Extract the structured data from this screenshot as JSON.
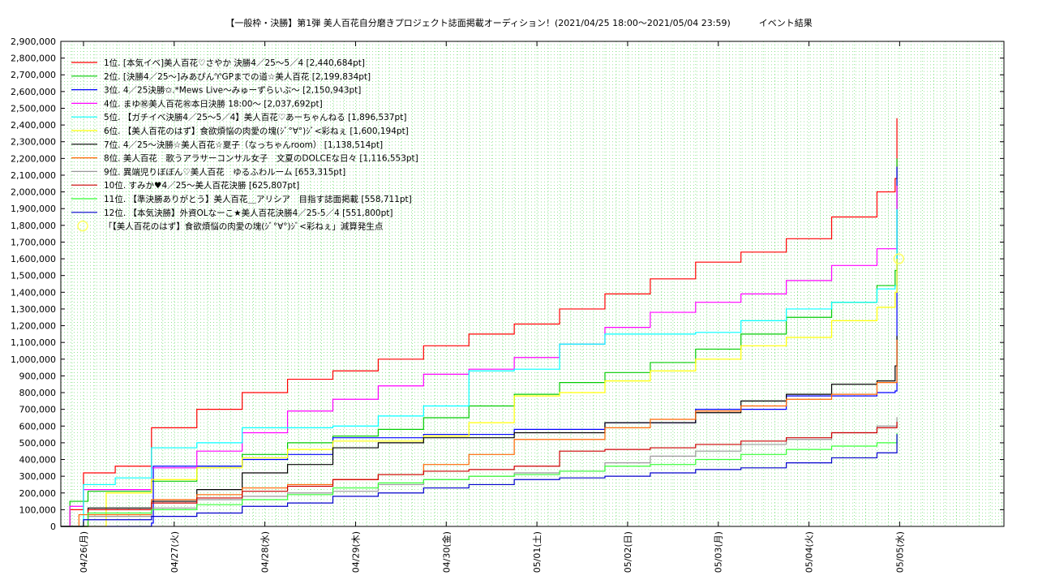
{
  "chart_data": {
    "type": "line",
    "title": "【一般枠・決勝】第1弾 美人百花自分磨きプロジェクト誌面掲載オーディション！(2021/04/25 18:00〜2021/05/04 23:59)          イベント結果",
    "xlabel": "",
    "ylabel": "",
    "xlim": [
      0,
      10.4
    ],
    "ylim": [
      0,
      2900000
    ],
    "x_ticks": [
      {
        "label": "04/26(月)",
        "x": 0.25
      },
      {
        "label": "04/27(火)",
        "x": 1.25
      },
      {
        "label": "04/28(水)",
        "x": 2.25
      },
      {
        "label": "04/29(木)",
        "x": 3.25
      },
      {
        "label": "04/30(金)",
        "x": 4.25
      },
      {
        "label": "05/01(土)",
        "x": 5.25
      },
      {
        "label": "05/02(日)",
        "x": 6.25
      },
      {
        "label": "05/03(月)",
        "x": 7.25
      },
      {
        "label": "05/04(火)",
        "x": 8.25
      },
      {
        "label": "05/05(水)",
        "x": 9.25
      }
    ],
    "y_ticks": [
      0,
      100000,
      200000,
      300000,
      400000,
      500000,
      600000,
      700000,
      800000,
      900000,
      1000000,
      1100000,
      1200000,
      1300000,
      1400000,
      1500000,
      1600000,
      1700000,
      1800000,
      1900000,
      2000000,
      2100000,
      2200000,
      2300000,
      2400000,
      2500000,
      2600000,
      2700000,
      2800000,
      2900000
    ],
    "grid": true,
    "legend_position": "top-left",
    "series": [
      {
        "name": "1位. [本気イベ]美人百花♡さやか 決勝4／25〜5／4 [2,440,684pt]",
        "color": "#ff0000",
        "points": [
          [
            0,
            0
          ],
          [
            0.1,
            100000
          ],
          [
            0.25,
            320000
          ],
          [
            0.6,
            360000
          ],
          [
            1,
            590000
          ],
          [
            1.5,
            700000
          ],
          [
            2,
            800000
          ],
          [
            2.5,
            880000
          ],
          [
            3,
            930000
          ],
          [
            3.5,
            1000000
          ],
          [
            4,
            1080000
          ],
          [
            4.5,
            1150000
          ],
          [
            5,
            1210000
          ],
          [
            5.5,
            1300000
          ],
          [
            6,
            1390000
          ],
          [
            6.5,
            1480000
          ],
          [
            7,
            1580000
          ],
          [
            7.5,
            1640000
          ],
          [
            8,
            1720000
          ],
          [
            8.5,
            1850000
          ],
          [
            9,
            2000000
          ],
          [
            9.2,
            2080000
          ],
          [
            9.22,
            2440684
          ]
        ]
      },
      {
        "name": "2位. [決勝4／25〜]みあぴん♈GPまでの道☆美人百花 [2,199,834pt]",
        "color": "#00cc00",
        "points": [
          [
            0,
            0
          ],
          [
            0.1,
            150000
          ],
          [
            0.3,
            210000
          ],
          [
            1,
            270000
          ],
          [
            1.5,
            360000
          ],
          [
            2,
            430000
          ],
          [
            2.5,
            500000
          ],
          [
            3,
            540000
          ],
          [
            3.5,
            580000
          ],
          [
            4,
            650000
          ],
          [
            4.5,
            720000
          ],
          [
            5,
            790000
          ],
          [
            5.5,
            860000
          ],
          [
            6,
            920000
          ],
          [
            6.5,
            980000
          ],
          [
            7,
            1060000
          ],
          [
            7.5,
            1150000
          ],
          [
            8,
            1250000
          ],
          [
            8.5,
            1340000
          ],
          [
            9,
            1440000
          ],
          [
            9.2,
            1530000
          ],
          [
            9.22,
            2199834
          ]
        ]
      },
      {
        "name": "3位. 4／25決勝✩.*Mews Live〜みゅーずらいぶ〜 [2,150,943pt]",
        "color": "#0000ff",
        "points": [
          [
            0,
            0
          ],
          [
            1,
            20000
          ],
          [
            1.02,
            360000
          ],
          [
            2,
            400000
          ],
          [
            2.5,
            430000
          ],
          [
            3,
            530000
          ],
          [
            4,
            550000
          ],
          [
            5,
            580000
          ],
          [
            6,
            620000
          ],
          [
            7,
            700000
          ],
          [
            8,
            780000
          ],
          [
            9,
            800000
          ],
          [
            9.2,
            810000
          ],
          [
            9.22,
            2150943
          ]
        ]
      },
      {
        "name": "4位. まゆ㊗美人百花㊗本日決勝 18:00〜 [2,037,692pt]",
        "color": "#ff00ff",
        "points": [
          [
            0,
            0
          ],
          [
            0.1,
            120000
          ],
          [
            0.25,
            220000
          ],
          [
            1,
            350000
          ],
          [
            1.5,
            450000
          ],
          [
            2,
            560000
          ],
          [
            2.5,
            690000
          ],
          [
            3,
            760000
          ],
          [
            3.5,
            840000
          ],
          [
            4,
            910000
          ],
          [
            4.5,
            940000
          ],
          [
            5,
            1010000
          ],
          [
            5.5,
            1090000
          ],
          [
            6,
            1190000
          ],
          [
            6.5,
            1280000
          ],
          [
            7,
            1340000
          ],
          [
            7.5,
            1390000
          ],
          [
            8,
            1470000
          ],
          [
            8.5,
            1560000
          ],
          [
            9,
            1660000
          ],
          [
            9.22,
            2037692
          ]
        ]
      },
      {
        "name": "5位. 【ガチイベ決勝4／25〜5／4】美人百花♡あーちゃんねる [1,896,537pt]",
        "color": "#00ffff",
        "points": [
          [
            0,
            0
          ],
          [
            0.25,
            250000
          ],
          [
            0.6,
            290000
          ],
          [
            1,
            470000
          ],
          [
            1.5,
            500000
          ],
          [
            2,
            590000
          ],
          [
            3,
            600000
          ],
          [
            3.5,
            660000
          ],
          [
            4,
            720000
          ],
          [
            4.5,
            930000
          ],
          [
            5,
            940000
          ],
          [
            5.5,
            1090000
          ],
          [
            6,
            1150000
          ],
          [
            7,
            1160000
          ],
          [
            7.5,
            1230000
          ],
          [
            8,
            1300000
          ],
          [
            8.5,
            1340000
          ],
          [
            9,
            1420000
          ],
          [
            9.2,
            1440000
          ],
          [
            9.22,
            1896537
          ]
        ]
      },
      {
        "name": "6位. 【美人百花のはず】食欲煩悩の肉愛の塊(ｼﾞ°∀°)ｼﾞ<彩ねぇ [1,600,194pt]",
        "color": "#ffff00",
        "points": [
          [
            0,
            0
          ],
          [
            0.5,
            200000
          ],
          [
            1,
            280000
          ],
          [
            1.5,
            350000
          ],
          [
            2,
            410000
          ],
          [
            2.5,
            460000
          ],
          [
            3,
            510000
          ],
          [
            4,
            540000
          ],
          [
            4.5,
            620000
          ],
          [
            5,
            780000
          ],
          [
            5.5,
            800000
          ],
          [
            6,
            870000
          ],
          [
            6.5,
            930000
          ],
          [
            7,
            1000000
          ],
          [
            7.5,
            1080000
          ],
          [
            8,
            1130000
          ],
          [
            8.5,
            1230000
          ],
          [
            9,
            1310000
          ],
          [
            9.2,
            1400000
          ],
          [
            9.22,
            1600194
          ]
        ]
      },
      {
        "name": "7位. 4／25〜決勝☆美人百花☆夏子（なっちゃんroom） [1,138,514pt]",
        "color": "#000000",
        "points": [
          [
            0,
            0
          ],
          [
            0.3,
            110000
          ],
          [
            1,
            150000
          ],
          [
            1.5,
            220000
          ],
          [
            2,
            320000
          ],
          [
            2.5,
            370000
          ],
          [
            3,
            470000
          ],
          [
            3.5,
            500000
          ],
          [
            4,
            530000
          ],
          [
            5,
            560000
          ],
          [
            6,
            620000
          ],
          [
            7,
            680000
          ],
          [
            7.5,
            750000
          ],
          [
            8,
            790000
          ],
          [
            8.5,
            850000
          ],
          [
            9,
            870000
          ],
          [
            9.2,
            960000
          ],
          [
            9.22,
            1138514
          ]
        ]
      },
      {
        "name": "8位. 美人百花　歌うアラサーコンサル女子　文夏のDOLCEな日々 [1,116,553pt]",
        "color": "#ff6600",
        "points": [
          [
            0,
            0
          ],
          [
            0.2,
            70000
          ],
          [
            1,
            160000
          ],
          [
            1.5,
            190000
          ],
          [
            2,
            230000
          ],
          [
            2.5,
            250000
          ],
          [
            3,
            280000
          ],
          [
            3.5,
            310000
          ],
          [
            4,
            370000
          ],
          [
            4.5,
            430000
          ],
          [
            5,
            520000
          ],
          [
            6,
            590000
          ],
          [
            6.5,
            640000
          ],
          [
            7,
            690000
          ],
          [
            7.5,
            720000
          ],
          [
            8,
            760000
          ],
          [
            8.5,
            790000
          ],
          [
            9,
            860000
          ],
          [
            9.22,
            1116553
          ]
        ]
      },
      {
        "name": "9位. 異端児りぼぼん♡美人百花　ゆるふわルーム [653,315pt]",
        "color": "#999999",
        "points": [
          [
            0,
            0
          ],
          [
            0.3,
            60000
          ],
          [
            1,
            110000
          ],
          [
            1.5,
            160000
          ],
          [
            2,
            180000
          ],
          [
            2.5,
            200000
          ],
          [
            3,
            210000
          ],
          [
            3.5,
            250000
          ],
          [
            4,
            280000
          ],
          [
            4.5,
            300000
          ],
          [
            5,
            320000
          ],
          [
            5.5,
            330000
          ],
          [
            6,
            380000
          ],
          [
            6.5,
            420000
          ],
          [
            7,
            450000
          ],
          [
            7.5,
            490000
          ],
          [
            8,
            520000
          ],
          [
            8.5,
            560000
          ],
          [
            9,
            600000
          ],
          [
            9.22,
            653315
          ]
        ]
      },
      {
        "name": "10位. すみか♥4／25〜美人百花決勝 [625,807pt]",
        "color": "#cc0000",
        "points": [
          [
            0,
            0
          ],
          [
            0.3,
            100000
          ],
          [
            1,
            140000
          ],
          [
            1.5,
            170000
          ],
          [
            2,
            210000
          ],
          [
            2.5,
            240000
          ],
          [
            3,
            280000
          ],
          [
            3.5,
            310000
          ],
          [
            4,
            330000
          ],
          [
            4.5,
            340000
          ],
          [
            5,
            360000
          ],
          [
            5.5,
            450000
          ],
          [
            6,
            460000
          ],
          [
            6.5,
            470000
          ],
          [
            7,
            490000
          ],
          [
            7.5,
            510000
          ],
          [
            8,
            530000
          ],
          [
            8.5,
            560000
          ],
          [
            9,
            590000
          ],
          [
            9.22,
            625807
          ]
        ]
      },
      {
        "name": "11位. 【準決勝ありがとう】美人百花＿アリシア　目指す誌面掲載 [558,711pt]",
        "color": "#33ff33",
        "points": [
          [
            0,
            0
          ],
          [
            0.3,
            80000
          ],
          [
            1,
            100000
          ],
          [
            1.5,
            130000
          ],
          [
            2,
            160000
          ],
          [
            2.5,
            190000
          ],
          [
            3,
            230000
          ],
          [
            3.5,
            260000
          ],
          [
            4,
            280000
          ],
          [
            4.5,
            300000
          ],
          [
            5,
            310000
          ],
          [
            5.5,
            330000
          ],
          [
            6,
            360000
          ],
          [
            6.5,
            370000
          ],
          [
            7,
            400000
          ],
          [
            7.5,
            430000
          ],
          [
            8,
            460000
          ],
          [
            8.5,
            480000
          ],
          [
            9,
            500000
          ],
          [
            9.22,
            558711
          ]
        ]
      },
      {
        "name": "12位. 【本気決勝】外資OLなーこ★美人百花決勝4／25-5／4 [551,800pt]",
        "color": "#0000cc",
        "points": [
          [
            0,
            0
          ],
          [
            0.25,
            40000
          ],
          [
            1,
            60000
          ],
          [
            1.5,
            80000
          ],
          [
            2,
            120000
          ],
          [
            2.5,
            140000
          ],
          [
            3,
            180000
          ],
          [
            3.5,
            200000
          ],
          [
            4,
            230000
          ],
          [
            4.5,
            250000
          ],
          [
            5,
            280000
          ],
          [
            5.5,
            290000
          ],
          [
            6,
            300000
          ],
          [
            6.5,
            320000
          ],
          [
            7,
            340000
          ],
          [
            7.5,
            350000
          ],
          [
            8,
            380000
          ],
          [
            8.5,
            410000
          ],
          [
            9,
            440000
          ],
          [
            9.22,
            551800
          ]
        ]
      }
    ],
    "annotation": {
      "label": "「【美人百花のはず】食欲煩悩の肉愛の塊(ｼﾞ°∀°)ｼﾞ<彩ねぇ」減算発生点",
      "color": "#ffff66",
      "x": 9.24,
      "y": 1600000
    }
  }
}
